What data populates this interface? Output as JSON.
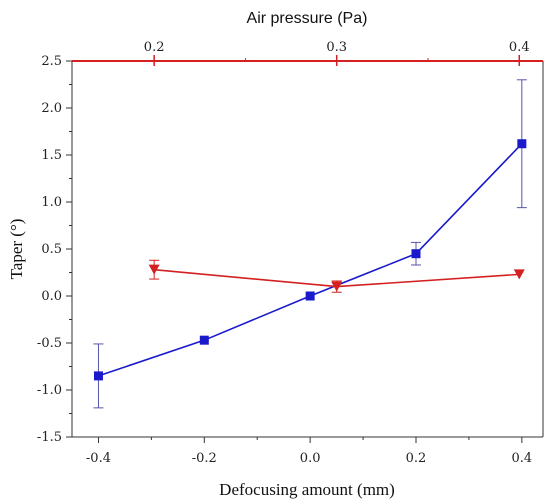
{
  "chart_data": {
    "type": "scatter",
    "title": "",
    "xlabel": "Defocusing amount (mm)",
    "ylabel": "Taper (°)",
    "x2label": "Air pressure (Pa)",
    "xlim": [
      -0.45,
      0.44
    ],
    "ylim": [
      -1.5,
      2.5
    ],
    "x2lim": [
      0.155,
      0.413
    ],
    "xticks": [
      -0.4,
      -0.2,
      0.0,
      0.2,
      0.4
    ],
    "xtick_labels": [
      "-0.4",
      "-0.2",
      "0.0",
      "0.2",
      "0.4"
    ],
    "yticks": [
      -1.5,
      -1.0,
      -0.5,
      0.0,
      0.5,
      1.0,
      1.5,
      2.0,
      2.5
    ],
    "ytick_labels": [
      "-1.5",
      "-1.0",
      "-0.5",
      "0.0",
      "0.5",
      "1.0",
      "1.5",
      "2.0",
      "2.5"
    ],
    "x2ticks": [
      0.2,
      0.3,
      0.4
    ],
    "x2tick_labels": [
      "0.2",
      "0.3",
      "0.4"
    ],
    "grid": false,
    "series": [
      {
        "axis": "bottom",
        "marker": "square",
        "color": "#1a1acc",
        "x": [
          -0.4,
          -0.2,
          0.0,
          0.2,
          0.4
        ],
        "y": [
          -0.85,
          -0.47,
          0.0,
          0.45,
          1.62
        ],
        "err": [
          0.34,
          0.0,
          0.0,
          0.12,
          0.68
        ]
      },
      {
        "axis": "top",
        "marker": "triangle-down",
        "color": "#d42020",
        "x": [
          0.2,
          0.3,
          0.4
        ],
        "y": [
          0.28,
          0.1,
          0.23
        ],
        "err": [
          0.1,
          0.06,
          0.0
        ]
      }
    ]
  },
  "colors": {
    "top_axis": "#d42020",
    "axis": "#333333"
  }
}
